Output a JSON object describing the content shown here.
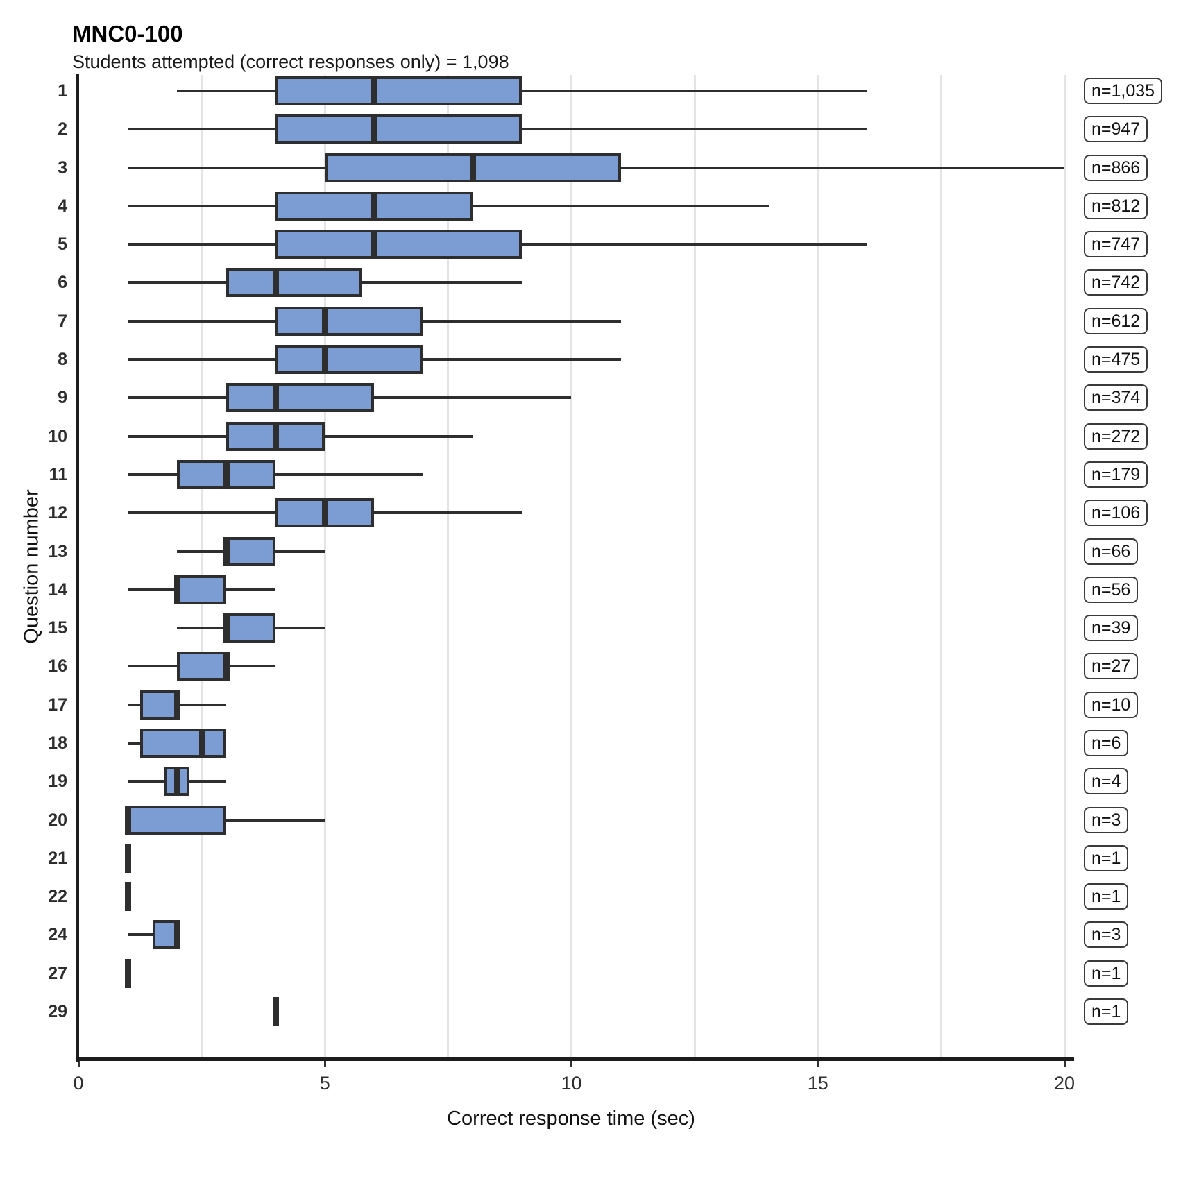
{
  "title": "MNC0-100",
  "subtitle": "Students attempted (correct responses only) = 1,098",
  "chart_data": {
    "type": "boxplot",
    "orientation": "horizontal",
    "title": "MNC0-100",
    "subtitle": "Students attempted (correct responses only) = 1,098",
    "xlabel": "Correct response time (sec)",
    "ylabel": "Question number",
    "xlim": [
      0,
      20
    ],
    "x_ticks": [
      "0",
      "5",
      "10",
      "15",
      "20"
    ],
    "x_tick_values": [
      0,
      5,
      10,
      15,
      20
    ],
    "gridlines_x": [
      2.5,
      5,
      7.5,
      10,
      12.5,
      15,
      17.5,
      20
    ],
    "grid": true,
    "legend_position": "none",
    "colors": {
      "box_fill": "#7c9dd4",
      "box_border": "#2e2e2e",
      "gridline": "#e4e4e4",
      "axis": "#1c1c1c"
    },
    "rows": [
      {
        "question": "1",
        "n_label": "n=1,035",
        "n": 1035,
        "whisker_low": 2,
        "q1": 4,
        "median": 6,
        "q3": 9,
        "whisker_high": 16
      },
      {
        "question": "2",
        "n_label": "n=947",
        "n": 947,
        "whisker_low": 1,
        "q1": 4,
        "median": 6,
        "q3": 9,
        "whisker_high": 16
      },
      {
        "question": "3",
        "n_label": "n=866",
        "n": 866,
        "whisker_low": 1,
        "q1": 5,
        "median": 8,
        "q3": 11,
        "whisker_high": 20
      },
      {
        "question": "4",
        "n_label": "n=812",
        "n": 812,
        "whisker_low": 1,
        "q1": 4,
        "median": 6,
        "q3": 8,
        "whisker_high": 14
      },
      {
        "question": "5",
        "n_label": "n=747",
        "n": 747,
        "whisker_low": 1,
        "q1": 4,
        "median": 6,
        "q3": 9,
        "whisker_high": 16
      },
      {
        "question": "6",
        "n_label": "n=742",
        "n": 742,
        "whisker_low": 1,
        "q1": 3,
        "median": 4,
        "q3": 5.75,
        "whisker_high": 9
      },
      {
        "question": "7",
        "n_label": "n=612",
        "n": 612,
        "whisker_low": 1,
        "q1": 4,
        "median": 5,
        "q3": 7,
        "whisker_high": 11
      },
      {
        "question": "8",
        "n_label": "n=475",
        "n": 475,
        "whisker_low": 1,
        "q1": 4,
        "median": 5,
        "q3": 7,
        "whisker_high": 11
      },
      {
        "question": "9",
        "n_label": "n=374",
        "n": 374,
        "whisker_low": 1,
        "q1": 3,
        "median": 4,
        "q3": 6,
        "whisker_high": 10
      },
      {
        "question": "10",
        "n_label": "n=272",
        "n": 272,
        "whisker_low": 1,
        "q1": 3,
        "median": 4,
        "q3": 5,
        "whisker_high": 8
      },
      {
        "question": "11",
        "n_label": "n=179",
        "n": 179,
        "whisker_low": 1,
        "q1": 2,
        "median": 3,
        "q3": 4,
        "whisker_high": 7
      },
      {
        "question": "12",
        "n_label": "n=106",
        "n": 106,
        "whisker_low": 1,
        "q1": 4,
        "median": 5,
        "q3": 6,
        "whisker_high": 9
      },
      {
        "question": "13",
        "n_label": "n=66",
        "n": 66,
        "whisker_low": 2,
        "q1": 3,
        "median": 3,
        "q3": 4,
        "whisker_high": 5
      },
      {
        "question": "14",
        "n_label": "n=56",
        "n": 56,
        "whisker_low": 1,
        "q1": 2,
        "median": 2,
        "q3": 3,
        "whisker_high": 4
      },
      {
        "question": "15",
        "n_label": "n=39",
        "n": 39,
        "whisker_low": 2,
        "q1": 3,
        "median": 3,
        "q3": 4,
        "whisker_high": 5
      },
      {
        "question": "16",
        "n_label": "n=27",
        "n": 27,
        "whisker_low": 1,
        "q1": 2,
        "median": 3,
        "q3": 3,
        "whisker_high": 4
      },
      {
        "question": "17",
        "n_label": "n=10",
        "n": 10,
        "whisker_low": 1,
        "q1": 1.25,
        "median": 2,
        "q3": 2,
        "whisker_high": 3
      },
      {
        "question": "18",
        "n_label": "n=6",
        "n": 6,
        "whisker_low": 1,
        "q1": 1.25,
        "median": 2.5,
        "q3": 3,
        "whisker_high": 3
      },
      {
        "question": "19",
        "n_label": "n=4",
        "n": 4,
        "whisker_low": 1,
        "q1": 1.75,
        "median": 2,
        "q3": 2.25,
        "whisker_high": 3
      },
      {
        "question": "20",
        "n_label": "n=3",
        "n": 3,
        "whisker_low": 1,
        "q1": 1,
        "median": 1,
        "q3": 3,
        "whisker_high": 5
      },
      {
        "question": "21",
        "n_label": "n=1",
        "n": 1,
        "whisker_low": 1,
        "q1": 1,
        "median": 1,
        "q3": 1,
        "whisker_high": 1
      },
      {
        "question": "22",
        "n_label": "n=1",
        "n": 1,
        "whisker_low": 1,
        "q1": 1,
        "median": 1,
        "q3": 1,
        "whisker_high": 1
      },
      {
        "question": "24",
        "n_label": "n=3",
        "n": 3,
        "whisker_low": 1,
        "q1": 1.5,
        "median": 2,
        "q3": 2,
        "whisker_high": 2
      },
      {
        "question": "27",
        "n_label": "n=1",
        "n": 1,
        "whisker_low": 1,
        "q1": 1,
        "median": 1,
        "q3": 1,
        "whisker_high": 1
      },
      {
        "question": "29",
        "n_label": "n=1",
        "n": 1,
        "whisker_low": 4,
        "q1": 4,
        "median": 4,
        "q3": 4,
        "whisker_high": 4
      }
    ]
  }
}
